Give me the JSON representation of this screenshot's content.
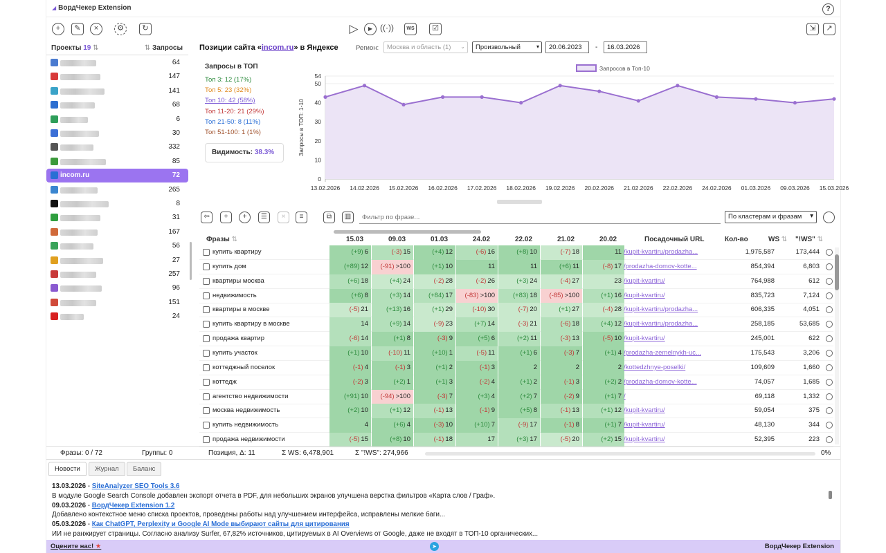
{
  "app_title": "ВордЧекер Extension",
  "help_label": "?",
  "projects": {
    "header_label": "Проекты",
    "count": "19",
    "sort_icon": "⇅",
    "queries_label": "Запросы",
    "items": [
      {
        "num": "64",
        "color": "#4a7bd0",
        "active": false
      },
      {
        "num": "147",
        "color": "#d83a3a",
        "active": false
      },
      {
        "num": "141",
        "color": "#3aa3c8",
        "active": false
      },
      {
        "num": "68",
        "color": "#2d6fd0",
        "active": false
      },
      {
        "num": "6",
        "color": "#2e9e5a",
        "active": false
      },
      {
        "num": "30",
        "color": "#3b6fd6",
        "active": false
      },
      {
        "num": "332",
        "color": "#555555",
        "active": false
      },
      {
        "num": "85",
        "color": "#3c9a3c",
        "active": false
      },
      {
        "name": "incom.ru",
        "num": "72",
        "color": "#2a6fd4",
        "active": true
      },
      {
        "num": "265",
        "color": "#3a86d0",
        "active": false
      },
      {
        "num": "8",
        "color": "#111111",
        "active": false
      },
      {
        "num": "31",
        "color": "#2e9e3e",
        "active": false
      },
      {
        "num": "167",
        "color": "#d06a3a",
        "active": false
      },
      {
        "num": "56",
        "color": "#3aa35a",
        "active": false
      },
      {
        "num": "27",
        "color": "#e0a020",
        "active": false
      },
      {
        "num": "257",
        "color": "#c83a3a",
        "active": false
      },
      {
        "num": "96",
        "color": "#8a5ad0",
        "active": false
      },
      {
        "num": "151",
        "color": "#d04a3a",
        "active": false
      },
      {
        "num": "24",
        "color": "#d82020",
        "active": false
      }
    ]
  },
  "header": {
    "title_prefix": "Позиции сайта «",
    "site": "incom.ru",
    "title_suffix": "» в Яндексе",
    "region_label": "Регион:",
    "region_value": "Москва и область (1)",
    "mode_value": "Произвольный",
    "date_from": "20.06.2023",
    "date_sep": "-",
    "date_to": "16.03.2026"
  },
  "top_stats": {
    "title": "Запросы в ТОП",
    "lines": [
      {
        "text": "Топ 3: 12 (17%)",
        "color": "#2e8b3e"
      },
      {
        "text": "Топ 5: 23 (32%)",
        "color": "#e08a20"
      },
      {
        "text": "Топ 10: 42 (58%)",
        "color": "#7c5bd6"
      },
      {
        "text": "Топ 11-20: 21 (29%)",
        "color": "#c23838"
      },
      {
        "text": "Топ 21-50: 8 (11%)",
        "color": "#2b6fd6"
      },
      {
        "text": "Топ 51-100: 1 (1%)",
        "color": "#a0522d"
      }
    ],
    "visibility_label": "Видимость:",
    "visibility_value": "38.3%"
  },
  "chart_data": {
    "type": "area",
    "series": [
      {
        "name": "Запросов в Топ-10",
        "values": [
          43,
          49,
          39,
          43,
          43,
          40,
          49,
          46,
          41,
          49,
          43,
          42,
          40,
          42
        ]
      }
    ],
    "categories": [
      "13.02.2026",
      "14.02.2026",
      "15.02.2026",
      "16.02.2026",
      "17.02.2026",
      "18.02.2026",
      "19.02.2026",
      "20.02.2026",
      "21.02.2026",
      "22.02.2026",
      "24.02.2026",
      "01.03.2026",
      "09.03.2026",
      "15.03.2026"
    ],
    "ylabel": "Запросы в ТОП: 1-10",
    "ylim": [
      0,
      54
    ],
    "yticks": [
      "0",
      "10",
      "20",
      "30",
      "40",
      "50",
      "54"
    ],
    "legend": "top",
    "color": "#9a6fd0",
    "fill": "#ece4f6"
  },
  "table_toolbar": {
    "filter_placeholder": "Фильтр по фразе...",
    "cluster_value": "По кластерам и фразам"
  },
  "table": {
    "col_phrases": "Фразы",
    "dates": [
      "15.03",
      "09.03",
      "01.03",
      "24.02",
      "22.02",
      "21.02",
      "20.02"
    ],
    "col_url": "Посадочный URL",
    "col_count": "Кол-во",
    "col_ws": "WS",
    "col_iws": "\"!WS\"",
    "rows": [
      {
        "phrase": "купить квартиру",
        "cells": [
          [
            "(+9)",
            "6",
            1
          ],
          [
            "(-3)",
            "15",
            2
          ],
          [
            "(+4)",
            "12",
            1
          ],
          [
            "(-6)",
            "16",
            2
          ],
          [
            "(+8)",
            "10",
            1
          ],
          [
            "(-7)",
            "18",
            3
          ],
          [
            "",
            "11",
            1
          ]
        ],
        "url": "/kupit-kvartiru/prodazha...",
        "ws": "1,975,587",
        "iws": "173,444"
      },
      {
        "phrase": "купить дом",
        "cells": [
          [
            "(+89)",
            "12",
            1
          ],
          [
            "(-91)",
            ">100",
            4
          ],
          [
            "(+1)",
            "10",
            1
          ],
          [
            "",
            "11",
            1
          ],
          [
            "",
            "11",
            1
          ],
          [
            "(+6)",
            "11",
            1
          ],
          [
            "(-8)",
            "17",
            2
          ]
        ],
        "url": "/prodazha-domov-kotte...",
        "ws": "854,394",
        "iws": "6,803"
      },
      {
        "phrase": "квартиры москва",
        "cells": [
          [
            "(+6)",
            "18",
            2
          ],
          [
            "(+4)",
            "24",
            3
          ],
          [
            "(-2)",
            "28",
            3
          ],
          [
            "(-2)",
            "26",
            3
          ],
          [
            "(+3)",
            "24",
            3
          ],
          [
            "(-4)",
            "27",
            3
          ],
          [
            "",
            "23",
            3
          ]
        ],
        "url": "/kupit-kvartiru/",
        "ws": "764,988",
        "iws": "612"
      },
      {
        "phrase": "недвижимость",
        "cells": [
          [
            "(+6)",
            "8",
            1
          ],
          [
            "(+3)",
            "14",
            2
          ],
          [
            "(+84)",
            "17",
            2
          ],
          [
            "(-83)",
            ">100",
            4
          ],
          [
            "(+83)",
            "18",
            2
          ],
          [
            "(-85)",
            ">100",
            4
          ],
          [
            "(+1)",
            "16",
            2
          ]
        ],
        "url": "/kupit-kvartiru/",
        "ws": "835,723",
        "iws": "7,124"
      },
      {
        "phrase": "квартиры в москве",
        "cells": [
          [
            "(-5)",
            "21",
            3
          ],
          [
            "(+13)",
            "16",
            2
          ],
          [
            "(+1)",
            "29",
            3
          ],
          [
            "(-10)",
            "30",
            3
          ],
          [
            "(-7)",
            "20",
            3
          ],
          [
            "(+1)",
            "27",
            3
          ],
          [
            "(-4)",
            "28",
            3
          ]
        ],
        "url": "/kupit-kvartiru/prodazha...",
        "ws": "606,335",
        "iws": "4,051"
      },
      {
        "phrase": "купить квартиру в москве",
        "cells": [
          [
            "",
            "14",
            2
          ],
          [
            "(+9)",
            "14",
            2
          ],
          [
            "(-9)",
            "23",
            3
          ],
          [
            "(+7)",
            "14",
            2
          ],
          [
            "(-3)",
            "21",
            3
          ],
          [
            "(-6)",
            "18",
            2
          ],
          [
            "(+4)",
            "12",
            2
          ]
        ],
        "url": "/kupit-kvartiru/prodazha...",
        "ws": "258,185",
        "iws": "53,685"
      },
      {
        "phrase": "продажа квартир",
        "cells": [
          [
            "(-6)",
            "14",
            2
          ],
          [
            "(+1)",
            "8",
            1
          ],
          [
            "(-3)",
            "9",
            1
          ],
          [
            "(+5)",
            "6",
            1
          ],
          [
            "(+2)",
            "11",
            2
          ],
          [
            "(-3)",
            "13",
            2
          ],
          [
            "(-5)",
            "10",
            1
          ]
        ],
        "url": "/kupit-kvartiru/",
        "ws": "245,001",
        "iws": "622"
      },
      {
        "phrase": "купить участок",
        "cells": [
          [
            "(+1)",
            "10",
            1
          ],
          [
            "(-10)",
            "11",
            2
          ],
          [
            "(+10)",
            "1",
            1
          ],
          [
            "(-5)",
            "11",
            2
          ],
          [
            "(+1)",
            "6",
            1
          ],
          [
            "(-3)",
            "7",
            1
          ],
          [
            "(+1)",
            "4",
            1
          ]
        ],
        "url": "/prodazha-zemelnykh-uc...",
        "ws": "175,543",
        "iws": "3,206"
      },
      {
        "phrase": "коттеджный поселок",
        "cells": [
          [
            "(-1)",
            "4",
            1
          ],
          [
            "(-1)",
            "3",
            1
          ],
          [
            "(+1)",
            "2",
            1
          ],
          [
            "(-1)",
            "3",
            1
          ],
          [
            "",
            "2",
            1
          ],
          [
            "",
            "2",
            1
          ],
          [
            "",
            "2",
            1
          ]
        ],
        "url": "/kottedzhnye-poselki/",
        "ws": "109,609",
        "iws": "1,660"
      },
      {
        "phrase": "коттедж",
        "cells": [
          [
            "(-2)",
            "3",
            1
          ],
          [
            "(+2)",
            "1",
            1
          ],
          [
            "(+1)",
            "3",
            1
          ],
          [
            "(-2)",
            "4",
            1
          ],
          [
            "(+1)",
            "2",
            1
          ],
          [
            "(-1)",
            "3",
            1
          ],
          [
            "(+2)",
            "2",
            1
          ]
        ],
        "url": "/prodazha-domov-kotte...",
        "ws": "74,057",
        "iws": "1,685"
      },
      {
        "phrase": "агентство недвижимости",
        "cells": [
          [
            "(+91)",
            "10",
            1
          ],
          [
            "(-94)",
            ">100",
            4
          ],
          [
            "(-3)",
            "7",
            1
          ],
          [
            "(+3)",
            "4",
            1
          ],
          [
            "(+2)",
            "7",
            1
          ],
          [
            "(-2)",
            "9",
            1
          ],
          [
            "(+1)",
            "7",
            1
          ]
        ],
        "url": "/",
        "ws": "69,118",
        "iws": "1,332"
      },
      {
        "phrase": "москва недвижимость",
        "cells": [
          [
            "(+2)",
            "10",
            1
          ],
          [
            "(+1)",
            "12",
            2
          ],
          [
            "(-1)",
            "13",
            2
          ],
          [
            "(-1)",
            "9",
            1
          ],
          [
            "(+5)",
            "8",
            1
          ],
          [
            "(-1)",
            "13",
            2
          ],
          [
            "(+1)",
            "12",
            2
          ]
        ],
        "url": "/kupit-kvartiru/",
        "ws": "59,054",
        "iws": "375"
      },
      {
        "phrase": "купить недвижимость",
        "cells": [
          [
            "",
            "4",
            1
          ],
          [
            "(+6)",
            "4",
            1
          ],
          [
            "(-3)",
            "10",
            1
          ],
          [
            "(+10)",
            "7",
            1
          ],
          [
            "(-9)",
            "17",
            2
          ],
          [
            "(-1)",
            "8",
            1
          ],
          [
            "(+1)",
            "7",
            1
          ]
        ],
        "url": "/kupit-kvartiru/",
        "ws": "48,130",
        "iws": "344"
      },
      {
        "phrase": "продажа недвижимости",
        "cells": [
          [
            "(-5)",
            "15",
            2
          ],
          [
            "(+8)",
            "10",
            1
          ],
          [
            "(-1)",
            "18",
            2
          ],
          [
            "",
            "17",
            2
          ],
          [
            "(+3)",
            "17",
            2
          ],
          [
            "(-5)",
            "20",
            3
          ],
          [
            "(+2)",
            "15",
            2
          ]
        ],
        "url": "/kupit-kvartiru/",
        "ws": "52,395",
        "iws": "223"
      }
    ]
  },
  "status": {
    "phrases": "Фразы: 0 / 72",
    "groups": "Группы: 0",
    "position": "Позиция, Δ: 11",
    "ws": "Σ WS: 6,478,901",
    "iws": "Σ \"!WS\": 274,966",
    "progress": "0%",
    "progress_fraction": 0
  },
  "tabs": [
    "Новости",
    "Журнал",
    "Баланс"
  ],
  "news": [
    {
      "date": "13.03.2026",
      "sep": " - ",
      "link": "SiteAnalyzer SEO Tools 3.6"
    },
    {
      "text": "В модуле Google Search Console добавлен экспорт отчета в PDF, для небольших экранов улучшена верстка фильтров «Карта слов / Граф»."
    },
    {
      "date": "09.03.2026",
      "sep": " - ",
      "link": "ВордЧекер Extension 1.2"
    },
    {
      "text": "Добавлено контекстное меню списка проектов, проведены работы над улучшением интерфейса, исправлены мелкие баги..."
    },
    {
      "date": "05.03.2026",
      "sep": " - ",
      "link": "Как ChatGPT, Perplexity и Google AI Mode выбирают сайты для цитирования"
    },
    {
      "text": "ИИ не ранжирует страницы. Согласно анализу Surfer, 67,82% источников, цитируемых в AI Overviews от Google, даже не входят в ТОП-10 органических..."
    }
  ],
  "footer": {
    "rate": "Оцените нас!",
    "star": "★",
    "brand": "ВордЧекер Extension"
  }
}
